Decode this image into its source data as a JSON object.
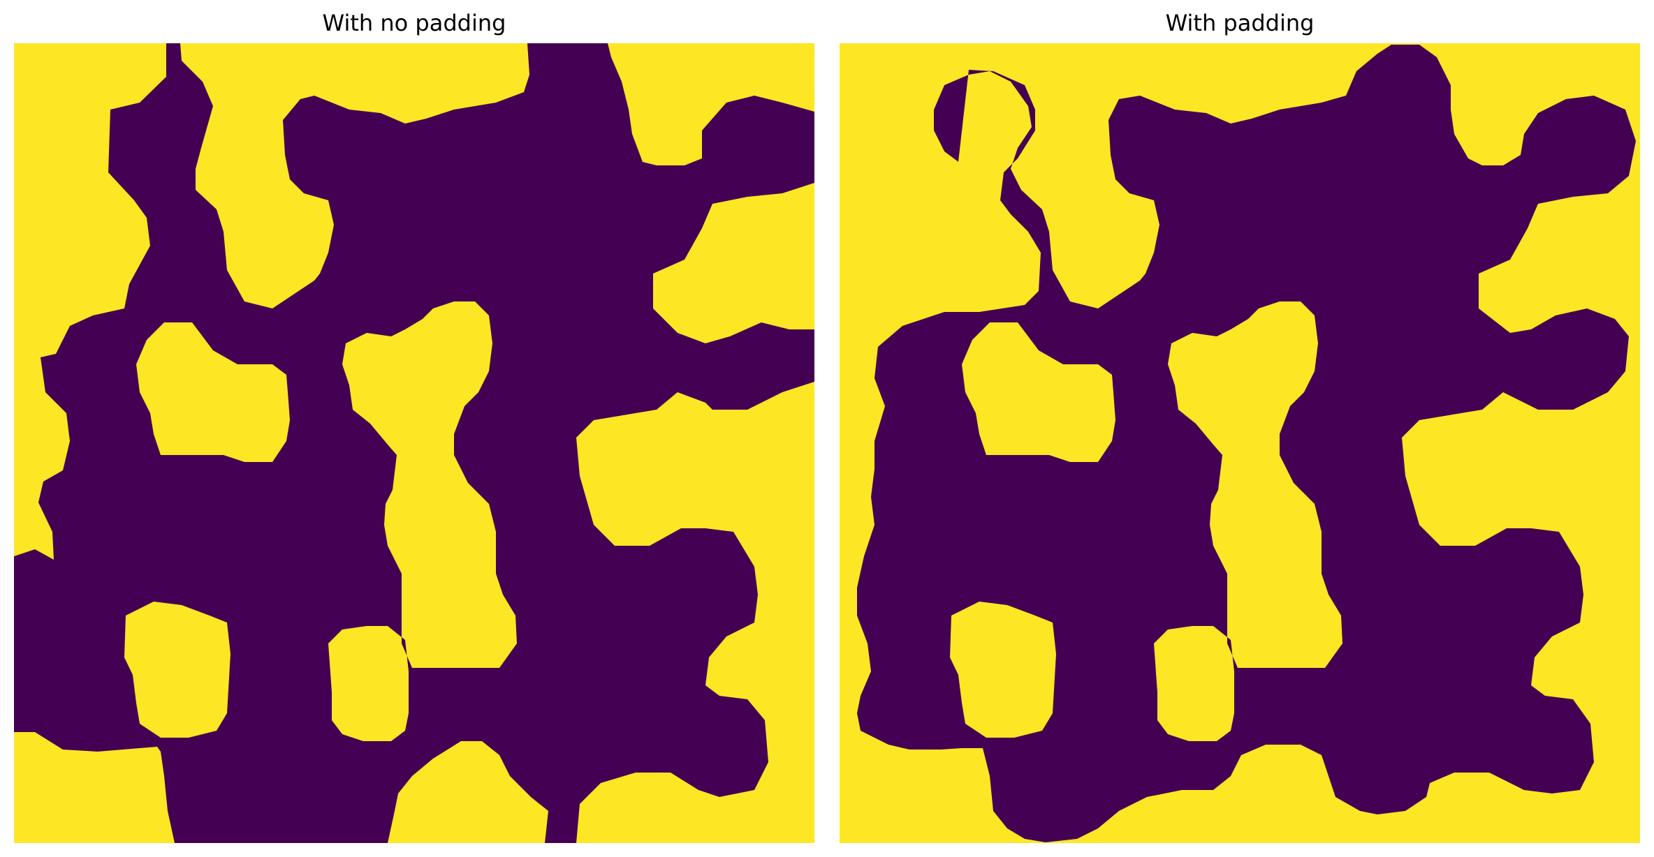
{
  "titles": {
    "left": "With no padding",
    "right": "With padding"
  },
  "colors": {
    "foreground": "#fde725",
    "background": "#440154"
  },
  "panels": [
    {
      "name": "no-padding"
    },
    {
      "name": "padding"
    }
  ]
}
